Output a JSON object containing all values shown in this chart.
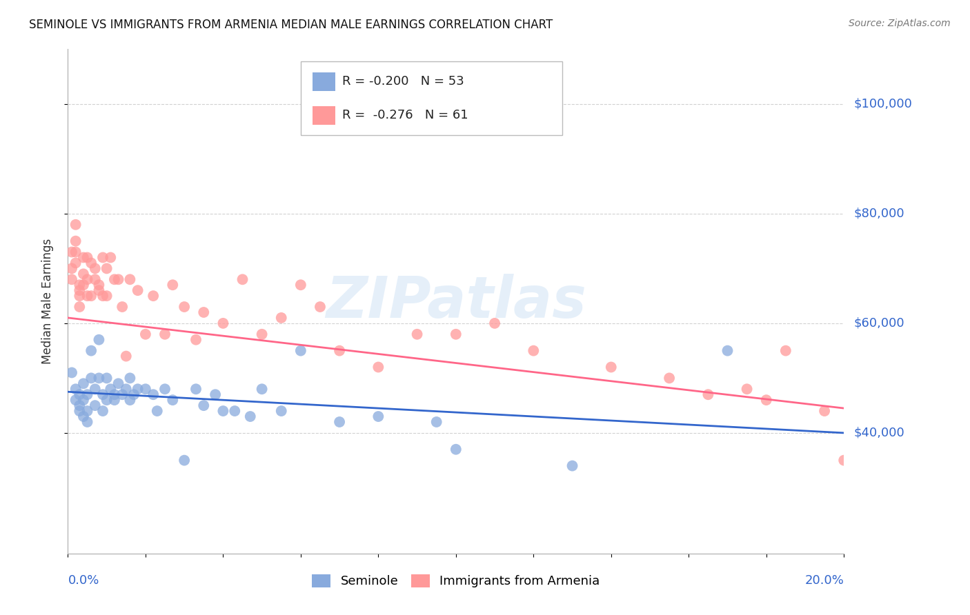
{
  "title": "SEMINOLE VS IMMIGRANTS FROM ARMENIA MEDIAN MALE EARNINGS CORRELATION CHART",
  "source": "Source: ZipAtlas.com",
  "ylabel": "Median Male Earnings",
  "y_tick_values": [
    40000,
    60000,
    80000,
    100000
  ],
  "y_tick_labels": [
    "$40,000",
    "$60,000",
    "$80,000",
    "$100,000"
  ],
  "ylim": [
    18000,
    110000
  ],
  "xlim": [
    0.0,
    0.2
  ],
  "watermark": "ZIPatlas",
  "blue_color": "#88AADD",
  "pink_color": "#FF9999",
  "blue_line_color": "#3366CC",
  "pink_line_color": "#FF6688",
  "axis_label_color": "#3366CC",
  "blue_scatter_x": [
    0.001,
    0.002,
    0.002,
    0.003,
    0.003,
    0.003,
    0.004,
    0.004,
    0.004,
    0.005,
    0.005,
    0.005,
    0.006,
    0.006,
    0.007,
    0.007,
    0.008,
    0.008,
    0.009,
    0.009,
    0.01,
    0.01,
    0.011,
    0.012,
    0.012,
    0.013,
    0.014,
    0.015,
    0.016,
    0.016,
    0.017,
    0.018,
    0.02,
    0.022,
    0.023,
    0.025,
    0.027,
    0.03,
    0.033,
    0.035,
    0.038,
    0.04,
    0.043,
    0.047,
    0.05,
    0.055,
    0.06,
    0.07,
    0.08,
    0.095,
    0.1,
    0.13,
    0.17
  ],
  "blue_scatter_y": [
    51000,
    48000,
    46000,
    45000,
    47000,
    44000,
    49000,
    46000,
    43000,
    47000,
    44000,
    42000,
    55000,
    50000,
    48000,
    45000,
    57000,
    50000,
    47000,
    44000,
    50000,
    46000,
    48000,
    47000,
    46000,
    49000,
    47000,
    48000,
    50000,
    46000,
    47000,
    48000,
    48000,
    47000,
    44000,
    48000,
    46000,
    35000,
    48000,
    45000,
    47000,
    44000,
    44000,
    43000,
    48000,
    44000,
    55000,
    42000,
    43000,
    42000,
    37000,
    34000,
    55000
  ],
  "pink_scatter_x": [
    0.001,
    0.001,
    0.001,
    0.002,
    0.002,
    0.002,
    0.002,
    0.003,
    0.003,
    0.003,
    0.003,
    0.004,
    0.004,
    0.004,
    0.005,
    0.005,
    0.005,
    0.006,
    0.006,
    0.007,
    0.007,
    0.008,
    0.008,
    0.009,
    0.009,
    0.01,
    0.01,
    0.011,
    0.012,
    0.013,
    0.014,
    0.015,
    0.016,
    0.018,
    0.02,
    0.022,
    0.025,
    0.027,
    0.03,
    0.033,
    0.035,
    0.04,
    0.045,
    0.05,
    0.055,
    0.06,
    0.065,
    0.07,
    0.08,
    0.09,
    0.1,
    0.11,
    0.12,
    0.14,
    0.155,
    0.165,
    0.175,
    0.18,
    0.185,
    0.195,
    0.2
  ],
  "pink_scatter_y": [
    73000,
    70000,
    68000,
    78000,
    75000,
    73000,
    71000,
    67000,
    66000,
    65000,
    63000,
    72000,
    69000,
    67000,
    72000,
    68000,
    65000,
    71000,
    65000,
    70000,
    68000,
    67000,
    66000,
    72000,
    65000,
    70000,
    65000,
    72000,
    68000,
    68000,
    63000,
    54000,
    68000,
    66000,
    58000,
    65000,
    58000,
    67000,
    63000,
    57000,
    62000,
    60000,
    68000,
    58000,
    61000,
    67000,
    63000,
    55000,
    52000,
    58000,
    58000,
    60000,
    55000,
    52000,
    50000,
    47000,
    48000,
    46000,
    55000,
    44000,
    35000
  ],
  "blue_trend_x": [
    0.0,
    0.2
  ],
  "blue_trend_y": [
    47500,
    40000
  ],
  "pink_trend_x": [
    0.0,
    0.2
  ],
  "pink_trend_y": [
    61000,
    44500
  ]
}
